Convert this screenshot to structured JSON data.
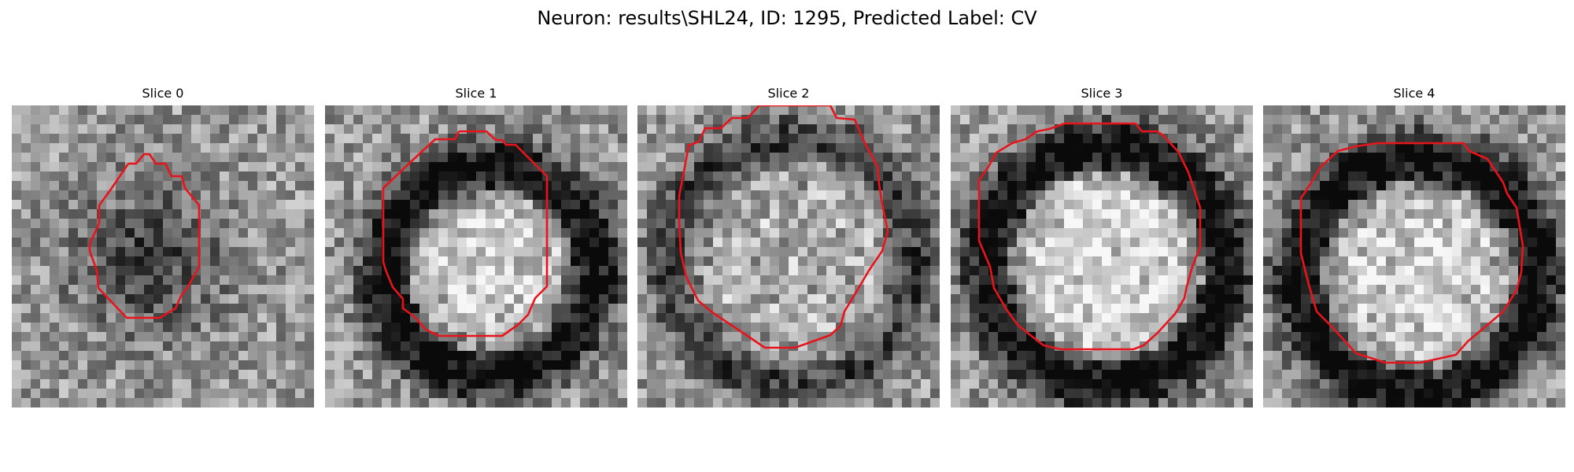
{
  "figure": {
    "title": "Neuron: results\\SHL24, ID: 1295, Predicted Label: CV",
    "contour_color": "#e8141b"
  },
  "panels": [
    {
      "title": "Slice 0",
      "image": "noisy-grayscale-patch-dark-blob",
      "outline": "red-contour"
    },
    {
      "title": "Slice 1",
      "image": "noisy-grayscale-patch-dark-ring",
      "outline": "red-contour"
    },
    {
      "title": "Slice 2",
      "image": "noisy-grayscale-patch-faint-ring",
      "outline": "red-contour"
    },
    {
      "title": "Slice 3",
      "image": "noisy-grayscale-patch-dark-ring",
      "outline": "red-contour"
    },
    {
      "title": "Slice 4",
      "image": "noisy-grayscale-patch-dark-ring",
      "outline": "red-contour"
    }
  ]
}
